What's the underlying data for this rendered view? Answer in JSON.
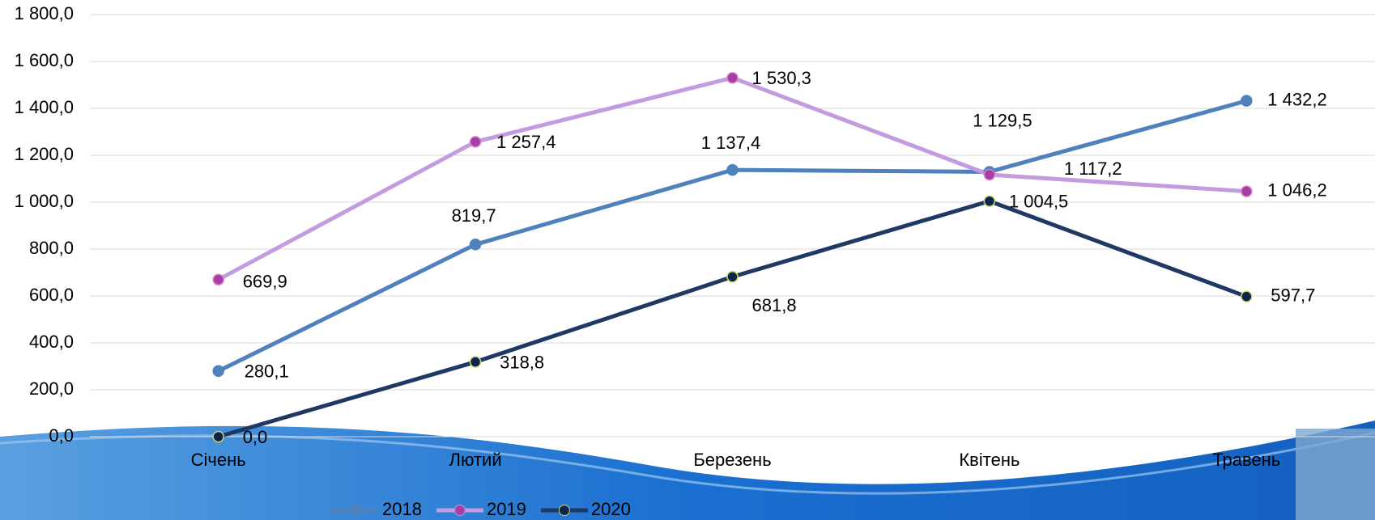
{
  "chart_data": {
    "type": "line",
    "categories": [
      "Січень",
      "Лютий",
      "Березень",
      "Квітень",
      "Травень"
    ],
    "series": [
      {
        "name": "2018",
        "color": "#4f81bd",
        "marker_color": "#4f81bd",
        "values": [
          280.1,
          819.7,
          1137.4,
          1129.5,
          1432.2
        ],
        "value_labels": [
          "280,1",
          "819,7",
          "1 137,4",
          "1 129,5",
          "1 432,2"
        ]
      },
      {
        "name": "2019",
        "color": "#c39be0",
        "marker_color": "#a43fa6",
        "values": [
          669.9,
          1257.4,
          1530.3,
          1117.2,
          1046.2
        ],
        "value_labels": [
          "669,9",
          "1 257,4",
          "1 530,3",
          "1 117,2",
          "1 046,2"
        ]
      },
      {
        "name": "2020",
        "color": "#1f3864",
        "marker_color": "#0f2350",
        "values": [
          0.0,
          318.8,
          681.8,
          1004.5,
          597.7
        ],
        "value_labels": [
          "0,0",
          "318,8",
          "681,8",
          "1 004,5",
          "597,7"
        ]
      }
    ],
    "ylim": [
      0,
      1800
    ],
    "yticks": [
      {
        "value": 0,
        "label": "0,0"
      },
      {
        "value": 200,
        "label": "200,0"
      },
      {
        "value": 400,
        "label": "400,0"
      },
      {
        "value": 600,
        "label": "600,0"
      },
      {
        "value": 800,
        "label": "800,0"
      },
      {
        "value": 1000,
        "label": "1 000,0"
      },
      {
        "value": 1200,
        "label": "1 200,0"
      },
      {
        "value": 1400,
        "label": "1 400,0"
      },
      {
        "value": 1600,
        "label": "1 600,0"
      },
      {
        "value": 1800,
        "label": "1 800,0"
      }
    ],
    "grid": true
  }
}
